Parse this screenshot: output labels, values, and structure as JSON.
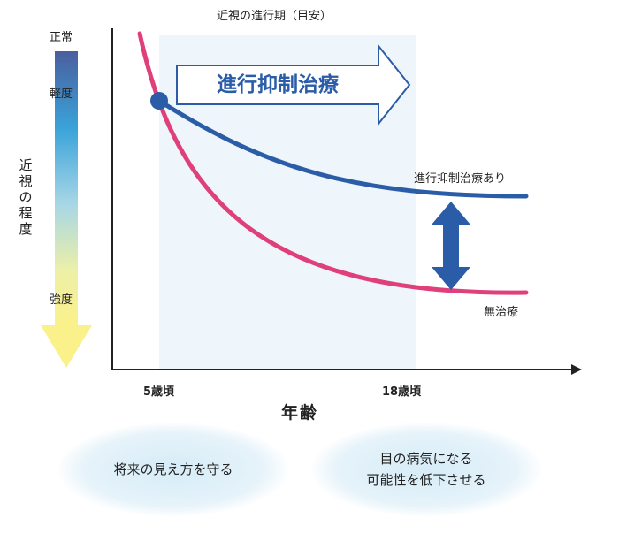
{
  "chart_data": {
    "type": "line",
    "title": "近視の進行期（目安）",
    "xlabel": "年齢",
    "ylabel": "近視の程度",
    "x_ticks": [
      "5歳頃",
      "18歳頃"
    ],
    "y_scale_labels": [
      "正常",
      "軽度",
      "強度"
    ],
    "progression_band": {
      "from": "5歳頃",
      "to": "18歳頃"
    },
    "band_arrow_label": "進行抑制治療",
    "series": [
      {
        "name": "進行抑制治療あり",
        "color": "#2a5ca8"
      },
      {
        "name": "無治療",
        "color": "#e0407a"
      }
    ],
    "grid": false
  },
  "bottom_notes": [
    "将来の見え方を守る",
    "目の病気になる\n可能性を低下させる"
  ],
  "colors": {
    "treated": "#2a5ca8",
    "untreated": "#e0407a",
    "band": "#eef6fb",
    "arrow_fill": "#ffffff",
    "arrow_stroke": "#2a5ca8",
    "double_arrow": "#2a5ca8"
  }
}
